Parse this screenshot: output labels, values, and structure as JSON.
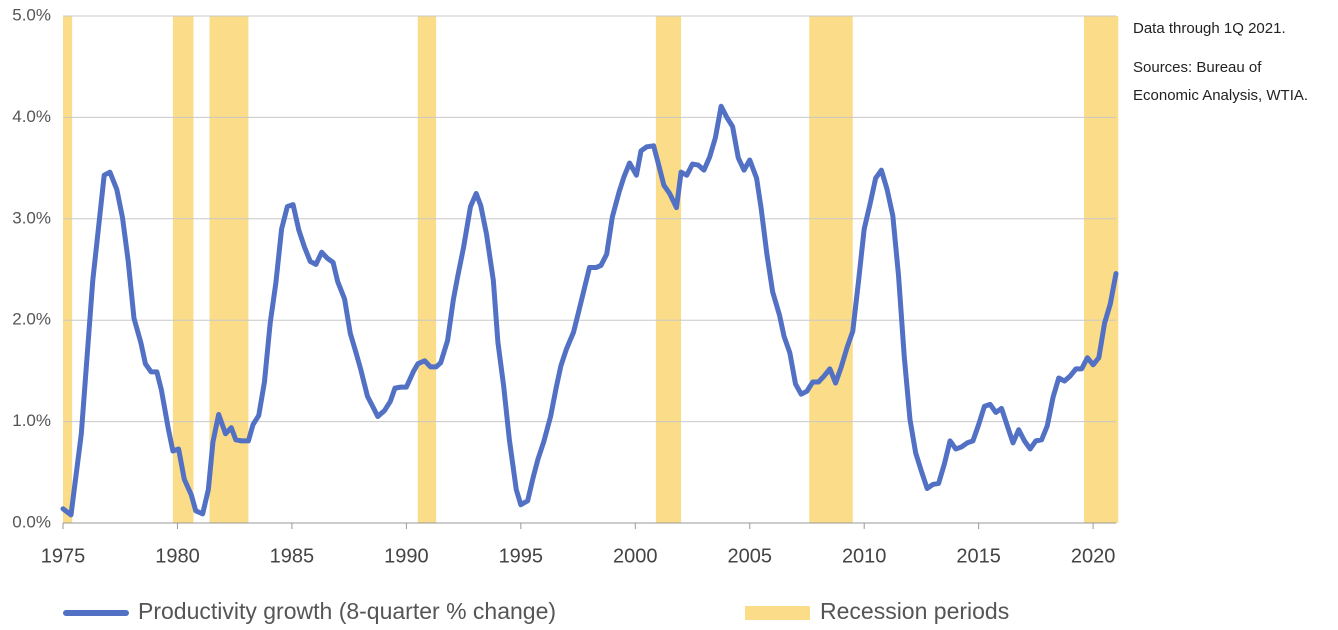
{
  "chart_data": {
    "type": "line",
    "notes": [
      "Data through 1Q 2021."
    ],
    "sources": [
      "Sources: Bureau of",
      "Economic Analysis, WTIA."
    ],
    "x": [
      1975.0,
      1975.35,
      1975.8,
      1976.3,
      1976.8,
      1977.05,
      1977.35,
      1977.6,
      1977.85,
      1978.1,
      1978.4,
      1978.6,
      1978.85,
      1979.1,
      1979.3,
      1979.6,
      1979.8,
      1980.05,
      1980.3,
      1980.6,
      1980.8,
      1981.1,
      1981.35,
      1981.55,
      1981.8,
      1982.1,
      1982.35,
      1982.55,
      1982.8,
      1983.1,
      1983.3,
      1983.55,
      1983.8,
      1984.05,
      1984.3,
      1984.55,
      1984.8,
      1985.05,
      1985.3,
      1985.55,
      1985.8,
      1986.05,
      1986.3,
      1986.55,
      1986.8,
      1987.0,
      1987.3,
      1987.55,
      1987.8,
      1988.0,
      1988.3,
      1988.55,
      1988.75,
      1989.05,
      1989.3,
      1989.5,
      1989.75,
      1990.0,
      1990.3,
      1990.5,
      1990.8,
      1991.05,
      1991.3,
      1991.5,
      1991.8,
      1992.05,
      1992.25,
      1992.5,
      1992.8,
      1993.05,
      1993.25,
      1993.5,
      1993.8,
      1994.0,
      1994.25,
      1994.5,
      1994.8,
      1995.0,
      1995.3,
      1995.55,
      1995.75,
      1996.0,
      1996.3,
      1996.55,
      1996.75,
      1997.0,
      1997.3,
      1997.5,
      1997.75,
      1998.0,
      1998.3,
      1998.5,
      1998.75,
      1999.0,
      1999.3,
      1999.5,
      1999.75,
      2000.05,
      2000.25,
      2000.5,
      2000.8,
      2001.0,
      2001.25,
      2001.5,
      2001.8,
      2002.0,
      2002.25,
      2002.5,
      2002.75,
      2003.0,
      2003.25,
      2003.5,
      2003.75,
      2004.0,
      2004.25,
      2004.5,
      2004.75,
      2005.0,
      2005.3,
      2005.5,
      2005.75,
      2006.0,
      2006.3,
      2006.5,
      2006.75,
      2007.0,
      2007.25,
      2007.5,
      2007.75,
      2008.0,
      2008.25,
      2008.5,
      2008.75,
      2009.0,
      2009.25,
      2009.5,
      2009.75,
      2010.0,
      2010.25,
      2010.5,
      2010.75,
      2011.0,
      2011.25,
      2011.5,
      2011.75,
      2012.0,
      2012.25,
      2012.5,
      2012.75,
      2013.0,
      2013.25,
      2013.5,
      2013.75,
      2014.0,
      2014.25,
      2014.5,
      2014.75,
      2015.0,
      2015.25,
      2015.5,
      2015.75,
      2016.0,
      2016.25,
      2016.5,
      2016.75,
      2017.0,
      2017.25,
      2017.5,
      2017.75,
      2018.0,
      2018.25,
      2018.5,
      2018.75,
      2019.0,
      2019.25,
      2019.5,
      2019.75,
      2020.0,
      2020.25,
      2020.5,
      2020.75,
      2021.0
    ],
    "series": [
      {
        "name": "Productivity growth (8-quarter % change)",
        "color": "#5270c4",
        "values": [
          0.14,
          0.08,
          0.88,
          2.39,
          3.43,
          3.46,
          3.29,
          3.01,
          2.58,
          2.02,
          1.78,
          1.57,
          1.49,
          1.49,
          1.31,
          0.93,
          0.71,
          0.73,
          0.43,
          0.28,
          0.12,
          0.09,
          0.33,
          0.8,
          1.07,
          0.88,
          0.94,
          0.82,
          0.81,
          0.81,
          0.97,
          1.06,
          1.39,
          1.97,
          2.37,
          2.9,
          3.12,
          3.14,
          2.89,
          2.72,
          2.58,
          2.55,
          2.67,
          2.61,
          2.57,
          2.38,
          2.21,
          1.87,
          1.68,
          1.52,
          1.25,
          1.14,
          1.05,
          1.11,
          1.2,
          1.33,
          1.34,
          1.34,
          1.49,
          1.57,
          1.6,
          1.54,
          1.54,
          1.58,
          1.8,
          2.2,
          2.44,
          2.72,
          3.12,
          3.25,
          3.13,
          2.85,
          2.39,
          1.78,
          1.35,
          0.82,
          0.33,
          0.18,
          0.22,
          0.46,
          0.63,
          0.8,
          1.05,
          1.34,
          1.55,
          1.72,
          1.88,
          2.06,
          2.29,
          2.52,
          2.52,
          2.54,
          2.65,
          3.02,
          3.27,
          3.41,
          3.55,
          3.43,
          3.67,
          3.71,
          3.72,
          3.55,
          3.33,
          3.25,
          3.11,
          3.46,
          3.43,
          3.54,
          3.53,
          3.48,
          3.61,
          3.8,
          4.11,
          4.0,
          3.91,
          3.6,
          3.48,
          3.58,
          3.4,
          3.1,
          2.65,
          2.28,
          2.05,
          1.84,
          1.68,
          1.37,
          1.27,
          1.3,
          1.39,
          1.39,
          1.45,
          1.52,
          1.38,
          1.54,
          1.73,
          1.89,
          2.38,
          2.9,
          3.14,
          3.4,
          3.48,
          3.29,
          3.03,
          2.44,
          1.64,
          1.02,
          0.69,
          0.51,
          0.34,
          0.38,
          0.39,
          0.58,
          0.81,
          0.73,
          0.75,
          0.79,
          0.81,
          0.97,
          1.15,
          1.17,
          1.09,
          1.13,
          0.96,
          0.79,
          0.92,
          0.81,
          0.73,
          0.81,
          0.82,
          0.96,
          1.24,
          1.43,
          1.4,
          1.45,
          1.52,
          1.52,
          1.63,
          1.56,
          1.63,
          1.97,
          2.16,
          2.46
        ]
      }
    ],
    "recessions": {
      "name": "Recession periods",
      "color": "#fbdc89",
      "ranges": [
        [
          1975.0,
          1975.4
        ],
        [
          1979.8,
          1980.7
        ],
        [
          1981.4,
          1983.1
        ],
        [
          1990.5,
          1991.3
        ],
        [
          2000.9,
          2002.0
        ],
        [
          2007.6,
          2009.5
        ],
        [
          2019.6,
          2021.1
        ]
      ]
    },
    "xlim": [
      1975,
      2021
    ],
    "xticks": [
      1975,
      1980,
      1985,
      1990,
      1995,
      2000,
      2005,
      2010,
      2015,
      2020
    ],
    "ylim": [
      0,
      5
    ],
    "yticks": [
      {
        "value": 0,
        "label": "0.0%"
      },
      {
        "value": 1,
        "label": "1.0%"
      },
      {
        "value": 2,
        "label": "2.0%"
      },
      {
        "value": 3,
        "label": "3.0%"
      },
      {
        "value": 4,
        "label": "4.0%"
      },
      {
        "value": 5,
        "label": "5.0%"
      }
    ],
    "grid": true
  }
}
